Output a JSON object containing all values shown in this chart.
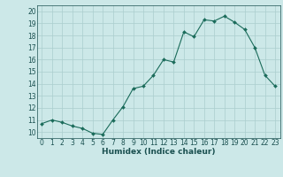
{
  "x": [
    0,
    1,
    2,
    3,
    4,
    5,
    6,
    7,
    8,
    9,
    10,
    11,
    12,
    13,
    14,
    15,
    16,
    17,
    18,
    19,
    20,
    21,
    22,
    23
  ],
  "y": [
    10.7,
    11.0,
    10.8,
    10.5,
    10.3,
    9.9,
    9.8,
    11.0,
    12.1,
    13.6,
    13.8,
    14.7,
    16.0,
    15.8,
    18.3,
    17.9,
    19.3,
    19.2,
    19.6,
    19.1,
    18.5,
    17.0,
    14.7,
    13.8
  ],
  "xlim": [
    -0.5,
    23.5
  ],
  "ylim": [
    9.5,
    20.5
  ],
  "yticks": [
    10,
    11,
    12,
    13,
    14,
    15,
    16,
    17,
    18,
    19,
    20
  ],
  "xticks": [
    0,
    1,
    2,
    3,
    4,
    5,
    6,
    7,
    8,
    9,
    10,
    11,
    12,
    13,
    14,
    15,
    16,
    17,
    18,
    19,
    20,
    21,
    22,
    23
  ],
  "xlabel": "Humidex (Indice chaleur)",
  "line_color": "#1a6b5a",
  "marker": "D",
  "marker_size": 2.0,
  "bg_color": "#cce8e8",
  "grid_color": "#aacece",
  "tick_color": "#1a5050",
  "label_fontsize": 5.5,
  "axis_label_fontsize": 6.5
}
